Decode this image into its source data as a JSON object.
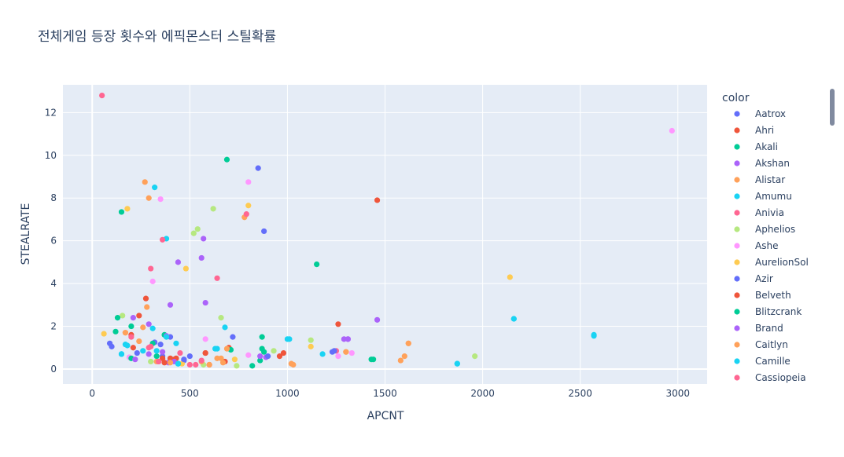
{
  "chart_data": {
    "type": "scatter",
    "title": "전체게임 등장 횟수와 에픽몬스터 스틸확률",
    "xlabel": "APCNT",
    "ylabel": "STEALRATE",
    "xlim": [
      -150,
      3150
    ],
    "ylim": [
      -0.7,
      13.3
    ],
    "x_ticks": [
      0,
      500,
      1000,
      1500,
      2000,
      2500,
      3000
    ],
    "y_ticks": [
      0,
      2,
      4,
      6,
      8,
      10,
      12
    ],
    "grid": true,
    "legend_title": "color",
    "legend_position": "right",
    "series": [
      {
        "name": "Aatrox",
        "color": "#636efa",
        "x": [
          90,
          100,
          360,
          470,
          720,
          850,
          880,
          1230
        ],
        "y": [
          1.2,
          1.05,
          0.6,
          0.4,
          1.5,
          9.4,
          6.45,
          0.8
        ]
      },
      {
        "name": "Ahri",
        "color": "#EF553B",
        "x": [
          210,
          275,
          360,
          420,
          580,
          680,
          980,
          1260,
          1460
        ],
        "y": [
          1.0,
          3.3,
          0.5,
          0.45,
          0.75,
          0.35,
          0.75,
          2.1,
          7.9
        ]
      },
      {
        "name": "Akali",
        "color": "#00cc96",
        "x": [
          120,
          150,
          200,
          370,
          690,
          820,
          870,
          880,
          1150,
          1430
        ],
        "y": [
          1.75,
          7.35,
          2.0,
          1.6,
          9.8,
          0.15,
          1.5,
          0.8,
          4.9,
          0.45
        ]
      },
      {
        "name": "Akshan",
        "color": "#ab63fa",
        "x": [
          210,
          290,
          390,
          400,
          440,
          560,
          570,
          580,
          890,
          1310,
          1460
        ],
        "y": [
          2.4,
          2.1,
          0.3,
          3.0,
          5.0,
          5.2,
          6.1,
          3.1,
          0.55,
          1.4,
          2.3
        ]
      },
      {
        "name": "Alistar",
        "color": "#FFA15A",
        "x": [
          170,
          260,
          270,
          280,
          290,
          640,
          670,
          780,
          1020,
          1300,
          1580,
          1600,
          1620
        ],
        "y": [
          1.7,
          1.95,
          8.75,
          2.9,
          8.0,
          0.5,
          0.3,
          7.1,
          0.25,
          0.8,
          0.4,
          0.6,
          1.2
        ]
      },
      {
        "name": "Amumu",
        "color": "#19d3f3",
        "x": [
          150,
          180,
          310,
          320,
          380,
          430,
          630,
          680,
          1010,
          1180,
          1870,
          2160,
          2570
        ],
        "y": [
          0.7,
          1.1,
          1.9,
          8.5,
          6.1,
          1.2,
          0.95,
          1.95,
          1.4,
          0.7,
          0.25,
          2.35,
          1.55
        ]
      },
      {
        "name": "Anivia",
        "color": "#FF6692",
        "x": [
          50,
          290,
          300,
          360,
          500,
          530,
          640,
          790,
          1250
        ],
        "y": [
          12.8,
          1.0,
          4.7,
          6.05,
          0.2,
          0.2,
          4.25,
          7.25,
          0.85
        ]
      },
      {
        "name": "Aphelios",
        "color": "#B6E880",
        "x": [
          155,
          300,
          520,
          540,
          570,
          620,
          660,
          740,
          930,
          1120,
          1960
        ],
        "y": [
          2.5,
          0.35,
          6.35,
          6.55,
          0.2,
          7.5,
          2.4,
          0.15,
          0.85,
          1.35,
          0.6
        ]
      },
      {
        "name": "Ashe",
        "color": "#FF97FF",
        "x": [
          190,
          310,
          350,
          580,
          800,
          800,
          1260,
          1330,
          2970
        ],
        "y": [
          0.55,
          4.1,
          7.95,
          1.4,
          0.65,
          8.75,
          0.6,
          0.75,
          11.15
        ]
      },
      {
        "name": "AurelionSol",
        "color": "#FECB52",
        "x": [
          60,
          180,
          460,
          480,
          730,
          800,
          1120,
          2140
        ],
        "y": [
          1.65,
          7.5,
          0.25,
          4.7,
          0.45,
          7.65,
          1.05,
          4.3
        ]
      },
      {
        "name": "Azir",
        "color": "#636efa",
        "x": [
          230,
          320,
          350,
          400,
          470,
          500,
          900,
          1240
        ],
        "y": [
          0.75,
          1.25,
          1.15,
          1.5,
          0.45,
          0.6,
          0.6,
          0.85
        ]
      },
      {
        "name": "Belveth",
        "color": "#EF553B",
        "x": [
          200,
          240,
          340,
          370,
          400,
          430,
          580,
          600,
          700,
          960
        ],
        "y": [
          1.6,
          2.5,
          0.35,
          0.3,
          0.5,
          0.5,
          0.75,
          0.2,
          1.0,
          0.6
        ]
      },
      {
        "name": "Blitzcrank",
        "color": "#00cc96",
        "x": [
          130,
          200,
          310,
          330,
          440,
          710,
          860,
          870,
          1440
        ],
        "y": [
          2.4,
          0.5,
          1.2,
          0.6,
          0.25,
          0.9,
          0.4,
          0.95,
          0.45
        ]
      },
      {
        "name": "Brand",
        "color": "#ab63fa",
        "x": [
          220,
          290,
          360,
          380,
          420,
          860,
          1290,
          1310
        ],
        "y": [
          0.45,
          0.7,
          0.8,
          1.55,
          0.35,
          0.6,
          1.4,
          1.4
        ]
      },
      {
        "name": "Caitlyn",
        "color": "#FFA15A",
        "x": [
          170,
          240,
          330,
          400,
          560,
          600,
          660,
          690,
          1030,
          1300,
          1620
        ],
        "y": [
          1.7,
          1.3,
          0.35,
          0.3,
          0.35,
          0.2,
          0.5,
          0.95,
          0.2,
          0.8,
          1.2
        ]
      },
      {
        "name": "Camille",
        "color": "#19d3f3",
        "x": [
          150,
          170,
          260,
          330,
          380,
          440,
          640,
          1000,
          1870,
          2160,
          2570
        ],
        "y": [
          0.7,
          1.15,
          0.85,
          0.85,
          1.5,
          0.25,
          0.95,
          1.4,
          0.25,
          2.35,
          1.6
        ]
      },
      {
        "name": "Cassiopeia",
        "color": "#FF6692",
        "x": [
          200,
          300,
          340,
          450,
          560
        ],
        "y": [
          1.5,
          1.05,
          0.35,
          0.75,
          0.4
        ]
      }
    ]
  }
}
